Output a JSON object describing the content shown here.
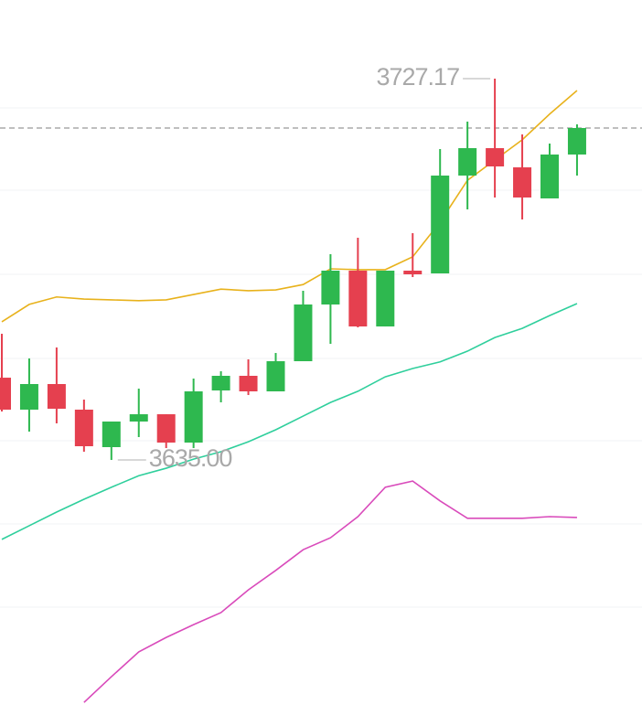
{
  "chart_data": {
    "type": "candlestick",
    "open": [
      3654.89,
      3647.16,
      3653.35,
      3647.16,
      3638.1,
      3644.29,
      3646.05,
      3639.2,
      3651.8,
      3655.34,
      3651.58,
      3658.87,
      3672.58,
      3680.76,
      3667.27,
      3680.76,
      3680.09,
      3703.74,
      3710.37,
      3705.73,
      3698.22,
      3708.83
    ],
    "high": [
      3665.5,
      3659.54,
      3662.19,
      3649.59,
      3644.29,
      3652.24,
      3646.05,
      3654.67,
      3656.44,
      3659.32,
      3660.86,
      3675.89,
      3684.73,
      3688.71,
      3680.76,
      3689.82,
      3710.15,
      3716.78,
      3727.17,
      3713.69,
      3711.48,
      3716.12
    ],
    "low": [
      3646.72,
      3641.85,
      3643.84,
      3636.99,
      3635.0,
      3640.53,
      3637.88,
      3637.88,
      3648.93,
      3650.7,
      3651.58,
      3658.87,
      3663.07,
      3667.05,
      3667.27,
      3679.21,
      3680.09,
      3695.56,
      3698.44,
      3693.13,
      3698.22,
      3703.74
    ],
    "close": [
      3647.16,
      3653.35,
      3647.38,
      3638.32,
      3644.29,
      3646.05,
      3639.2,
      3651.58,
      3655.34,
      3651.58,
      3658.87,
      3672.58,
      3680.76,
      3667.27,
      3680.76,
      3679.87,
      3703.74,
      3710.37,
      3705.95,
      3698.44,
      3708.83,
      3715.24
    ],
    "up_color": "#2eb84f",
    "down_color": "#e5404f",
    "lines": [
      {
        "color": "#e8b21c",
        "values": [
          3668.4,
          3672.6,
          3674.4,
          3673.9,
          3673.7,
          3673.5,
          3673.7,
          3675.0,
          3676.3,
          3675.9,
          3676.1,
          3677.4,
          3681.2,
          3681.0,
          3681.0,
          3684.1,
          3692.5,
          3702.6,
          3707.5,
          3712.4,
          3718.6,
          3724.3
        ]
      },
      {
        "color": "#2fcf9c",
        "values": [
          3615.8,
          3619.1,
          3622.4,
          3625.5,
          3628.4,
          3631.2,
          3633.0,
          3635.2,
          3637.0,
          3639.4,
          3642.3,
          3645.6,
          3648.9,
          3651.6,
          3655.1,
          3657.1,
          3658.7,
          3661.3,
          3664.6,
          3666.8,
          3669.9,
          3672.8
        ]
      },
      {
        "color": "#d94bbb",
        "values": [
          null,
          null,
          null,
          3576.4,
          3582.6,
          3588.6,
          3592.1,
          3595.2,
          3598.1,
          3603.6,
          3608.3,
          3613.3,
          3616.2,
          3621.3,
          3628.4,
          3629.9,
          3625.1,
          3620.9,
          3620.9,
          3620.9,
          3621.3,
          3621.1
        ]
      }
    ],
    "price_line": 3715.24,
    "annotations": [
      {
        "value": 3727.17,
        "label": "3727.17",
        "index": 18
      },
      {
        "value": 3635.0,
        "label": "3635.00",
        "index": 4
      }
    ],
    "ylim": [
      3575.77,
      3746.18
    ]
  }
}
